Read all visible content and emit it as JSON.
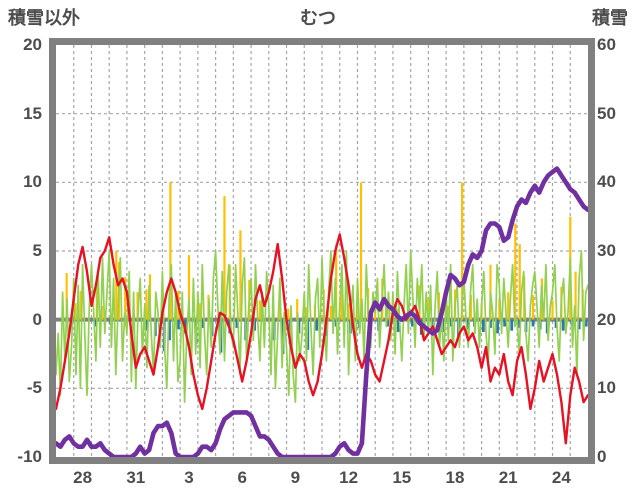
{
  "chart_data": {
    "type": "line",
    "title": "むつ",
    "left_axis": {
      "label": "積雪以外",
      "min": -10,
      "max": 20,
      "ticks": [
        "20",
        "15",
        "10",
        "5",
        "0",
        "-5",
        "-10"
      ],
      "tick_values": [
        20,
        15,
        10,
        5,
        0,
        -5,
        -10
      ],
      "gridline_values": [
        15,
        10,
        5,
        -5
      ],
      "zero_line": 0
    },
    "right_axis": {
      "label": "積雪",
      "min": 0,
      "max": 60,
      "ticks": [
        "60",
        "50",
        "40",
        "30",
        "20",
        "10",
        "0"
      ],
      "tick_values": [
        60,
        50,
        40,
        30,
        20,
        10,
        0
      ]
    },
    "x_axis": {
      "range_days": [
        0,
        30
      ],
      "gridline_every_days": 1,
      "tick_labels": [
        "28",
        "31",
        "3",
        "6",
        "9",
        "12",
        "15",
        "18",
        "21",
        "24"
      ],
      "tick_positions_days": [
        1.5,
        4.5,
        7.5,
        10.5,
        13.5,
        16.5,
        19.5,
        22.5,
        25.5,
        28.5
      ]
    },
    "grid": {
      "color": "#a6a6a6",
      "dash": "3 3",
      "border_color": "#808080",
      "zero_line_color": "#808080"
    },
    "series": [
      {
        "name": "orange-bars",
        "type": "bar",
        "axis": "left",
        "color": "#ffc000",
        "bar_width": 2.2,
        "points": [
          [
            0.6,
            3.4
          ],
          [
            1.1,
            1.2
          ],
          [
            1.4,
            2.1
          ],
          [
            2.3,
            2.6
          ],
          [
            2.6,
            1
          ],
          [
            3.4,
            5
          ],
          [
            3.55,
            4.2
          ],
          [
            3.9,
            3.1
          ],
          [
            4.6,
            2
          ],
          [
            5.1,
            2.2
          ],
          [
            5.3,
            3.3
          ],
          [
            6,
            1.5
          ],
          [
            6.45,
            10
          ],
          [
            6.9,
            2.1
          ],
          [
            7.5,
            4.7
          ],
          [
            8.1,
            1.2
          ],
          [
            8.6,
            1.8
          ],
          [
            9.5,
            9
          ],
          [
            9.8,
            4
          ],
          [
            10.4,
            6.5
          ],
          [
            10.9,
            2.9
          ],
          [
            11.5,
            1.4
          ],
          [
            12.6,
            1.2
          ],
          [
            13.1,
            0.8
          ],
          [
            13.6,
            1.5
          ],
          [
            14.1,
            0.9
          ],
          [
            14.6,
            1.1
          ],
          [
            15.1,
            2.2
          ],
          [
            15.5,
            1
          ],
          [
            15.8,
            5.5
          ],
          [
            16.1,
            3
          ],
          [
            16.5,
            1.2
          ],
          [
            17,
            2
          ],
          [
            17.2,
            10
          ],
          [
            17.6,
            2.3
          ],
          [
            18,
            1
          ],
          [
            18.4,
            3
          ],
          [
            18.8,
            1.3
          ],
          [
            19.3,
            0.8
          ],
          [
            19.9,
            1.1
          ],
          [
            20.5,
            2.5
          ],
          [
            21,
            1.5
          ],
          [
            21.6,
            2
          ],
          [
            22.1,
            1
          ],
          [
            22.5,
            2.2
          ],
          [
            22.9,
            10
          ],
          [
            23.4,
            1.8
          ],
          [
            24,
            1.2
          ],
          [
            24.5,
            4
          ],
          [
            25,
            1.5
          ],
          [
            25.5,
            2
          ],
          [
            25.9,
            7
          ],
          [
            26.15,
            5.5
          ],
          [
            26.4,
            3.2
          ],
          [
            26.9,
            1.8
          ],
          [
            27.4,
            3
          ],
          [
            28,
            1.4
          ],
          [
            28.5,
            2.4
          ],
          [
            29,
            7.5
          ],
          [
            29.3,
            3.5
          ],
          [
            29.7,
            2.2
          ]
        ]
      },
      {
        "name": "blue-bars",
        "type": "bar",
        "axis": "left",
        "color": "#2e75b6",
        "bar_width": 2.8,
        "points": [
          [
            2.2,
            -0.5
          ],
          [
            3.1,
            -0.4
          ],
          [
            5.1,
            -0.8
          ],
          [
            5.6,
            -1.2
          ],
          [
            6.1,
            -2.3
          ],
          [
            6.4,
            -1.5
          ],
          [
            6.9,
            -0.7
          ],
          [
            7.3,
            -1
          ],
          [
            7.9,
            -1.8
          ],
          [
            8.3,
            -0.6
          ],
          [
            8.8,
            -1.2
          ],
          [
            9.3,
            -2.4
          ],
          [
            9.8,
            -1
          ],
          [
            10.2,
            -0.6
          ],
          [
            10.7,
            -1.5
          ],
          [
            11.2,
            -0.8
          ],
          [
            12.3,
            -1.5
          ],
          [
            12.8,
            -2.5
          ],
          [
            13.2,
            -1.8
          ],
          [
            13.7,
            -1
          ],
          [
            14.2,
            -2.2
          ],
          [
            14.7,
            -0.8
          ],
          [
            15.2,
            -1.2
          ],
          [
            15.8,
            -0.5
          ],
          [
            16.6,
            -1
          ],
          [
            17.1,
            -0.6
          ],
          [
            18.2,
            -0.8
          ],
          [
            18.7,
            -0.5
          ],
          [
            19.3,
            -0.9
          ],
          [
            20.1,
            -0.5
          ],
          [
            20.6,
            -1.1
          ],
          [
            21.2,
            -0.6
          ],
          [
            21.8,
            -0.9
          ],
          [
            22.3,
            -0.5
          ],
          [
            22.7,
            -1.2
          ],
          [
            23.2,
            -0.7
          ],
          [
            23.6,
            -0.5
          ],
          [
            24.1,
            -0.9
          ],
          [
            24.5,
            -0.6
          ],
          [
            24.9,
            -1
          ],
          [
            25.3,
            -0.5
          ],
          [
            25.7,
            -0.8
          ],
          [
            26.1,
            -0.6
          ],
          [
            26.5,
            -0.9
          ],
          [
            26.9,
            -0.5
          ],
          [
            27.3,
            -0.7
          ],
          [
            27.7,
            -1
          ],
          [
            28.2,
            -0.6
          ],
          [
            28.6,
            -0.8
          ],
          [
            29.1,
            -0.5
          ],
          [
            29.5,
            -0.7
          ],
          [
            29.9,
            -0.5
          ]
        ]
      },
      {
        "name": "green-line",
        "type": "line",
        "axis": "left",
        "color": "#92d050",
        "width": 1.7,
        "step_days": 0.125,
        "values": [
          -4,
          -1,
          -5.5,
          2,
          -3,
          1.5,
          -4.5,
          -2,
          3,
          -4,
          2.5,
          -5,
          4,
          -1,
          -5.5,
          1,
          4,
          0.5,
          -3,
          3.5,
          -2,
          4.5,
          -1,
          2,
          5,
          -2,
          3,
          -4,
          1,
          4.5,
          -3,
          0.5,
          -1,
          3.5,
          -4.5,
          2,
          -5,
          0.5,
          3,
          -2.5,
          1,
          -3.5,
          2.5,
          -1,
          -4,
          2,
          0.5,
          -2,
          3.5,
          -2,
          -5,
          1.5,
          4,
          -3,
          2,
          -4.5,
          -3,
          2,
          -6,
          -1,
          1.5,
          -4,
          3,
          -2.5,
          2,
          -3.5,
          4,
          -1,
          -4,
          1.5,
          -2,
          3,
          5,
          1,
          -2.5,
          3.5,
          -3,
          2,
          4,
          -1,
          -2,
          4,
          0.5,
          -4,
          2.5,
          4.5,
          -3,
          1,
          3,
          -1.5,
          4,
          0,
          -3,
          2,
          -2,
          3.5,
          1,
          -4,
          2.5,
          -5,
          -1,
          3,
          -3.5,
          0.5,
          -2,
          -5.5,
          1,
          -4,
          -6,
          0.5,
          -3,
          -1,
          2,
          -3,
          4,
          -0.5,
          -4,
          1.5,
          3,
          -2,
          4.5,
          0,
          -3,
          2,
          5,
          -1,
          3,
          -2.5,
          1,
          4,
          -2,
          5,
          -4,
          0.5,
          2.5,
          -3,
          3,
          -1,
          1.5,
          -3,
          4,
          0,
          -2,
          2,
          0.5,
          3,
          -2,
          1,
          4,
          -0.5,
          2,
          -1.5,
          2,
          -2.5,
          3.5,
          0,
          -3,
          1,
          4,
          -1,
          5,
          1.5,
          -2,
          3,
          0.5,
          4,
          -1.5,
          2,
          -1,
          2.5,
          -4,
          1,
          3.5,
          -2,
          0.5,
          -3,
          2,
          -1.5,
          4,
          -3,
          1,
          2.5,
          -2,
          0.5,
          3,
          0,
          -2,
          2,
          4,
          -1,
          1.5,
          -2,
          1,
          3.5,
          -1,
          -3,
          2,
          0.5,
          -2.5,
          4,
          2.5,
          -1,
          3,
          0.5,
          -2,
          1.5,
          4,
          -0.5,
          0,
          -2.5,
          2,
          3.5,
          -1,
          -3,
          1,
          2.5,
          3.5,
          1,
          -2,
          2.5,
          0,
          4,
          -1.5,
          1,
          2,
          4,
          -0.5,
          -3,
          1.5,
          3,
          -1,
          0.5,
          4.5,
          -2,
          1,
          -4,
          3,
          5,
          -1.5,
          2,
          2.5
        ]
      },
      {
        "name": "red-line",
        "type": "line",
        "axis": "left",
        "color": "#e81123",
        "width": 2.4,
        "step_days": 0.25,
        "values": [
          -6.5,
          -5,
          -3,
          -1,
          1.5,
          4,
          5.3,
          3.5,
          1,
          2.5,
          4.5,
          5,
          6,
          4,
          2.5,
          3,
          2,
          -1,
          -3.5,
          -2.5,
          -2,
          -3,
          -4,
          -2,
          0.5,
          2,
          3,
          2,
          0.5,
          -0.5,
          -2,
          -4,
          -5.5,
          -6.5,
          -5,
          -3,
          -1,
          0.5,
          0.3,
          -0.5,
          -1.5,
          -3,
          -4.5,
          -3,
          -1,
          1.5,
          2.5,
          1,
          2,
          3.5,
          5.5,
          3,
          0,
          -2,
          -3.5,
          -2.5,
          -3,
          -4.5,
          -5.5,
          -4.5,
          -2.5,
          0,
          3,
          5,
          6.2,
          4.5,
          2.5,
          -0.5,
          -2.5,
          -3.5,
          -2.5,
          -3,
          -4,
          -4.5,
          -3,
          -1.5,
          0.5,
          1.5,
          1,
          0,
          0.5,
          1,
          0,
          -1.5,
          -1,
          -0.5,
          -1.5,
          -2.5,
          -2,
          -1.5,
          -2,
          -1,
          -0.5,
          -1.5,
          -1,
          -2,
          -3.5,
          -2,
          -4.5,
          -3.5,
          -4,
          -2.5,
          -4.5,
          -5.5,
          -3,
          -2,
          -4,
          -6.5,
          -5,
          -3,
          -4.5,
          -3.5,
          -2.5,
          -4,
          -6,
          -9,
          -5.5,
          -3.5,
          -4.5,
          -6,
          -5.5
        ]
      },
      {
        "name": "purple-line",
        "type": "line",
        "axis": "right",
        "color": "#7030a0",
        "width": 4.6,
        "step_days": 0.25,
        "values": [
          2,
          1.5,
          2.5,
          3,
          2,
          1.5,
          1.5,
          2.5,
          1.5,
          1.5,
          2,
          1,
          0.5,
          0,
          0,
          0,
          0,
          0,
          0.5,
          1.5,
          0.5,
          1,
          3.5,
          4.5,
          4.5,
          5,
          3.5,
          0.5,
          0,
          0,
          0,
          0,
          0.5,
          1.5,
          1.5,
          1,
          2,
          4,
          5.5,
          6,
          6.5,
          6.5,
          6.5,
          6.5,
          6,
          4.5,
          3,
          3,
          2.5,
          1.5,
          0.5,
          0,
          0,
          0,
          0,
          0,
          0,
          0,
          0,
          0,
          0,
          0,
          0,
          0.5,
          1.5,
          2,
          1,
          0.5,
          0.5,
          2,
          12,
          21,
          22.5,
          21.5,
          23,
          22,
          21.5,
          20.5,
          20,
          20.5,
          21,
          20.5,
          19.5,
          19,
          18.5,
          18,
          18.5,
          21,
          24,
          26.5,
          26,
          25,
          25.5,
          28,
          29.5,
          29,
          30,
          33,
          34,
          34,
          33.5,
          31.5,
          32,
          34.5,
          36.5,
          37.5,
          37,
          38.5,
          39.5,
          38.5,
          40,
          41,
          41.5,
          42,
          41,
          40,
          39,
          38.5,
          37.5,
          36.5,
          36
        ]
      }
    ]
  }
}
